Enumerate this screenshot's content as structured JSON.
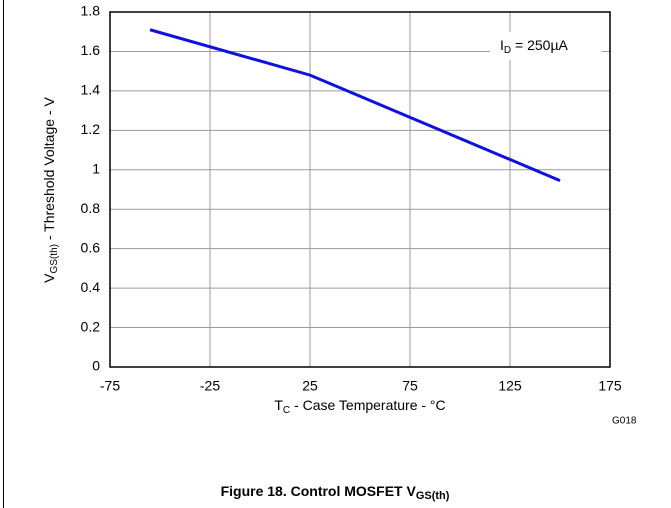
{
  "chart_data": {
    "type": "line",
    "ylabel": {
      "main": "V",
      "sub": "GS(th)",
      "rest": " - Threshold Voltage - V"
    },
    "xlabel": {
      "main": "T",
      "sub": "C",
      "rest": " - Case Temperature - °C"
    },
    "annotation": {
      "main": "I",
      "sub": "D",
      "rest": " = 250µA"
    },
    "code": "G018",
    "caption": {
      "main": "Figure 18. Control MOSFET V",
      "sub": "GS(th)"
    },
    "x": [
      -55,
      25,
      150
    ],
    "series": [
      {
        "color": "#1010e0",
        "values": [
          1.71,
          1.48,
          0.945
        ]
      }
    ],
    "xlim": [
      -75,
      175
    ],
    "xticks": [
      -75,
      -25,
      25,
      75,
      125,
      175
    ],
    "ylim": [
      0,
      1.8
    ],
    "yticks": [
      0,
      0.2,
      0.4,
      0.6,
      0.8,
      1,
      1.2,
      1.4,
      1.6,
      1.8
    ],
    "grid": true
  }
}
